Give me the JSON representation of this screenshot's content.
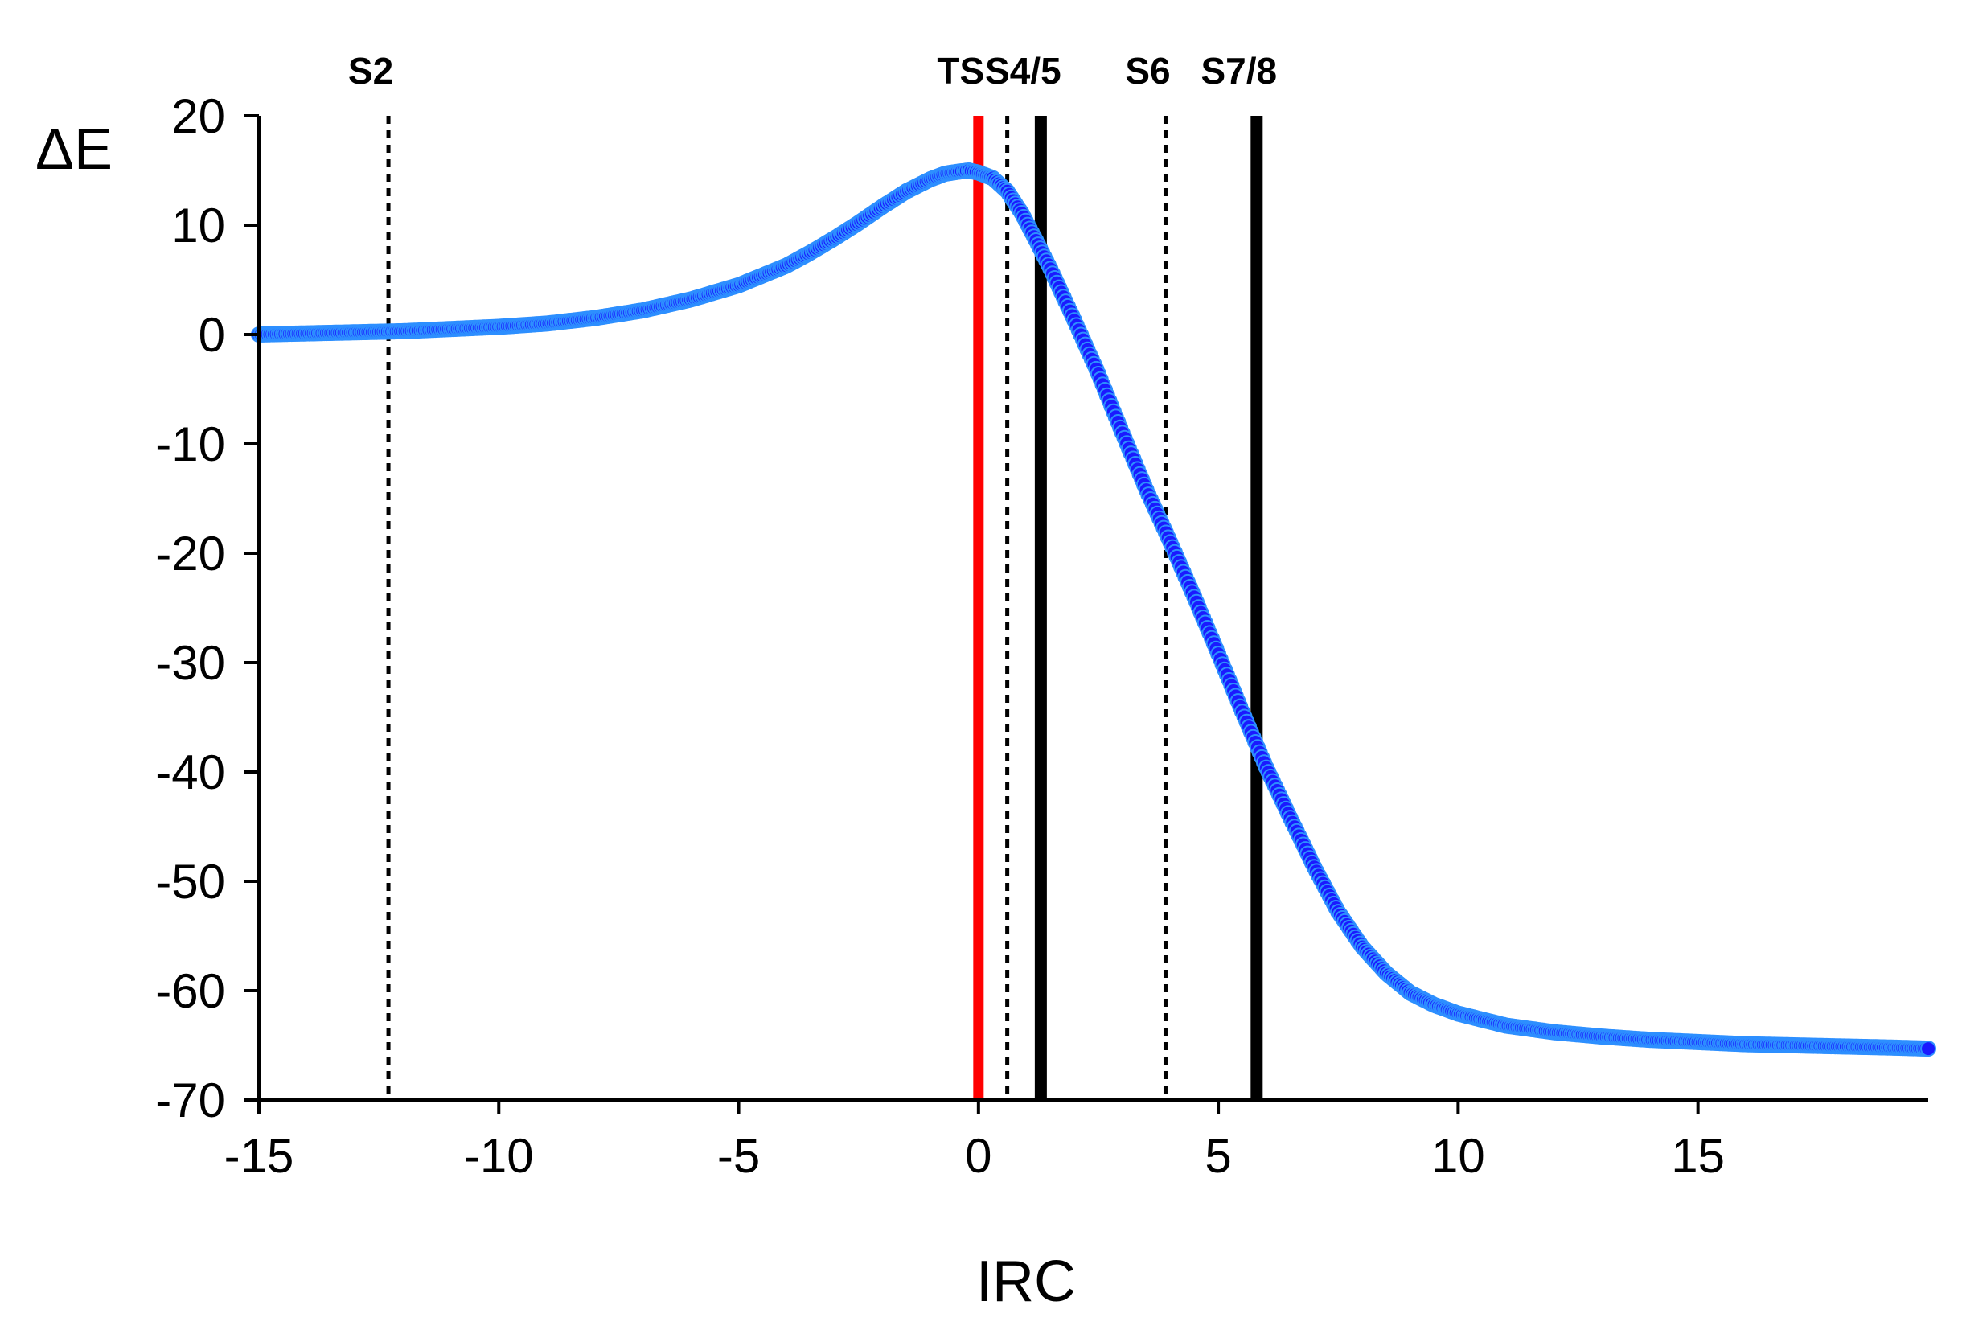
{
  "chart_data": {
    "type": "scatter",
    "xlabel": "IRC",
    "ylabel": "ΔE",
    "xlim": [
      -15,
      19.8
    ],
    "ylim": [
      -70,
      20
    ],
    "x_ticks": [
      -15,
      -10,
      -5,
      0,
      5,
      10,
      15
    ],
    "x_tick_labels": [
      "-15",
      "-10",
      "-5",
      "0",
      "5",
      "10",
      "15"
    ],
    "y_ticks": [
      20,
      10,
      0,
      -10,
      -20,
      -30,
      -40,
      -50,
      -60,
      -70
    ],
    "y_tick_labels": [
      "20",
      "10",
      "0",
      "-10",
      "-20",
      "-30",
      "-40",
      "-50",
      "-60",
      "-70"
    ],
    "grid": false,
    "series": [
      {
        "color": "#1a1aff",
        "x": [
          -15,
          -14,
          -13,
          -12,
          -11,
          -10,
          -9,
          -8,
          -7,
          -6,
          -5,
          -4,
          -3.5,
          -3,
          -2.5,
          -2,
          -1.5,
          -1,
          -0.7,
          -0.4,
          -0.2,
          0,
          0.3,
          0.6,
          0.9,
          1.2,
          1.5,
          2,
          2.5,
          3,
          3.5,
          4,
          4.5,
          5,
          5.5,
          6,
          6.5,
          7,
          7.5,
          8,
          8.5,
          9,
          9.5,
          10,
          11,
          12,
          13,
          14,
          15,
          16,
          17,
          18,
          19,
          19.8
        ],
        "values": [
          0,
          0.1,
          0.2,
          0.3,
          0.5,
          0.7,
          1.0,
          1.5,
          2.2,
          3.2,
          4.5,
          6.3,
          7.5,
          8.8,
          10.2,
          11.7,
          13.1,
          14.2,
          14.7,
          14.9,
          15.0,
          14.8,
          14.3,
          13.1,
          11.1,
          8.6,
          6.0,
          1.3,
          -3.6,
          -9.0,
          -14.2,
          -19.0,
          -24.0,
          -29.2,
          -34.5,
          -39.6,
          -44.2,
          -48.7,
          -52.8,
          -56.0,
          -58.4,
          -60.2,
          -61.3,
          -62.1,
          -63.2,
          -63.8,
          -64.2,
          -64.5,
          -64.7,
          -64.9,
          -65.0,
          -65.1,
          -65.2,
          -65.3
        ]
      }
    ],
    "markers": [
      {
        "label": "S2",
        "x": -12.3,
        "style": "dotted",
        "color": "#000000"
      },
      {
        "label": "TS",
        "x": 0,
        "style": "solid",
        "color": "#ff0000"
      },
      {
        "label": "",
        "x": 0.6,
        "style": "dotted",
        "color": "#000000"
      },
      {
        "label": "S4/5",
        "x": 1.3,
        "style": "solid",
        "color": "#000000"
      },
      {
        "label": "S6",
        "x": 3.9,
        "style": "dotted",
        "color": "#000000"
      },
      {
        "label": "S7/8",
        "x": 5.8,
        "style": "solid",
        "color": "#000000"
      }
    ]
  }
}
